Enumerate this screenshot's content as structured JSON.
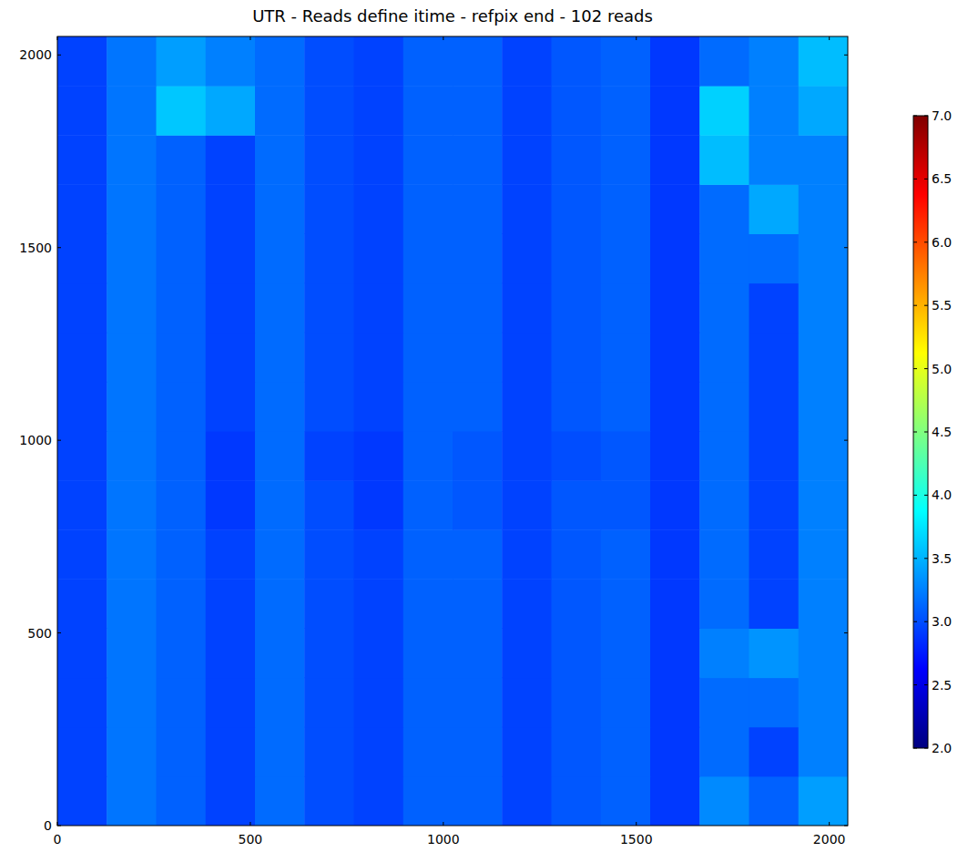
{
  "chart_data": {
    "type": "heatmap",
    "title": "UTR - Reads define itime - refpix end - 102 reads",
    "xlim": [
      0,
      2048
    ],
    "ylim": [
      0,
      2048
    ],
    "xticks": [
      0,
      500,
      1000,
      1500,
      2000
    ],
    "yticks": [
      0,
      500,
      1000,
      1500,
      2000
    ],
    "cells": [
      [
        2.95,
        3.2,
        3.1,
        2.95,
        3.15,
        3.0,
        2.95,
        3.1,
        3.1,
        2.95,
        3.05,
        3.1,
        2.9,
        3.3,
        3.1,
        3.4
      ],
      [
        2.95,
        3.2,
        3.1,
        2.95,
        3.15,
        3.0,
        2.95,
        3.1,
        3.1,
        2.95,
        3.05,
        3.1,
        2.9,
        3.15,
        2.95,
        3.25
      ],
      [
        2.95,
        3.2,
        3.1,
        2.95,
        3.15,
        3.0,
        2.95,
        3.1,
        3.1,
        2.95,
        3.05,
        3.1,
        2.9,
        3.15,
        3.15,
        3.25
      ],
      [
        2.95,
        3.2,
        3.1,
        2.95,
        3.15,
        3.0,
        2.95,
        3.1,
        3.1,
        2.95,
        3.05,
        3.1,
        2.9,
        3.25,
        3.35,
        3.25
      ],
      [
        2.95,
        3.2,
        3.1,
        2.95,
        3.15,
        3.0,
        2.95,
        3.1,
        3.1,
        2.95,
        3.05,
        3.1,
        2.9,
        3.15,
        2.95,
        3.25
      ],
      [
        2.95,
        3.2,
        3.1,
        2.95,
        3.15,
        3.0,
        2.95,
        3.1,
        3.1,
        2.95,
        3.05,
        3.1,
        2.9,
        3.15,
        2.95,
        3.25
      ],
      [
        2.95,
        3.2,
        3.1,
        2.9,
        3.15,
        3.0,
        2.9,
        3.1,
        3.05,
        2.95,
        3.05,
        3.05,
        2.9,
        3.15,
        2.95,
        3.25
      ],
      [
        2.95,
        3.2,
        3.1,
        2.9,
        3.15,
        2.95,
        2.9,
        3.1,
        3.05,
        2.95,
        3.0,
        3.05,
        2.9,
        3.15,
        2.95,
        3.25
      ],
      [
        2.95,
        3.2,
        3.1,
        2.95,
        3.15,
        3.0,
        2.95,
        3.1,
        3.1,
        2.95,
        3.05,
        3.1,
        2.9,
        3.15,
        2.95,
        3.25
      ],
      [
        2.95,
        3.2,
        3.1,
        2.95,
        3.15,
        3.0,
        2.95,
        3.1,
        3.1,
        2.95,
        3.05,
        3.1,
        2.9,
        3.15,
        2.95,
        3.25
      ],
      [
        2.95,
        3.2,
        3.1,
        2.95,
        3.15,
        3.0,
        2.95,
        3.1,
        3.1,
        2.95,
        3.05,
        3.1,
        2.9,
        3.15,
        2.95,
        3.25
      ],
      [
        2.95,
        3.2,
        3.1,
        2.95,
        3.15,
        3.0,
        2.95,
        3.1,
        3.1,
        2.95,
        3.05,
        3.1,
        2.9,
        3.15,
        3.15,
        3.25
      ],
      [
        2.95,
        3.2,
        3.1,
        2.95,
        3.15,
        3.0,
        2.95,
        3.1,
        3.1,
        2.95,
        3.05,
        3.1,
        2.9,
        3.15,
        3.45,
        3.25
      ],
      [
        2.95,
        3.2,
        3.1,
        2.95,
        3.15,
        3.0,
        2.95,
        3.1,
        3.1,
        2.95,
        3.05,
        3.1,
        2.9,
        3.55,
        3.25,
        3.25
      ],
      [
        2.95,
        3.2,
        3.6,
        3.45,
        3.15,
        3.0,
        2.95,
        3.1,
        3.1,
        2.95,
        3.05,
        3.1,
        2.9,
        3.65,
        3.25,
        3.45
      ],
      [
        2.95,
        3.2,
        3.4,
        3.25,
        3.15,
        3.0,
        2.95,
        3.1,
        3.1,
        2.95,
        3.05,
        3.1,
        2.9,
        3.15,
        3.25,
        3.55
      ]
    ],
    "color_range": [
      2,
      7
    ],
    "color_ticks": [
      {
        "value": 2,
        "label": "2.0"
      },
      {
        "value": 2.5,
        "label": "2.5"
      },
      {
        "value": 3,
        "label": "3.0"
      },
      {
        "value": 3.5,
        "label": "3.5"
      },
      {
        "value": 4,
        "label": "4.0"
      },
      {
        "value": 4.5,
        "label": "4.5"
      },
      {
        "value": 5,
        "label": "5.0"
      },
      {
        "value": 5.5,
        "label": "5.5"
      },
      {
        "value": 6,
        "label": "6.0"
      },
      {
        "value": 6.5,
        "label": "6.5"
      },
      {
        "value": 7,
        "label": "7.0"
      }
    ]
  }
}
